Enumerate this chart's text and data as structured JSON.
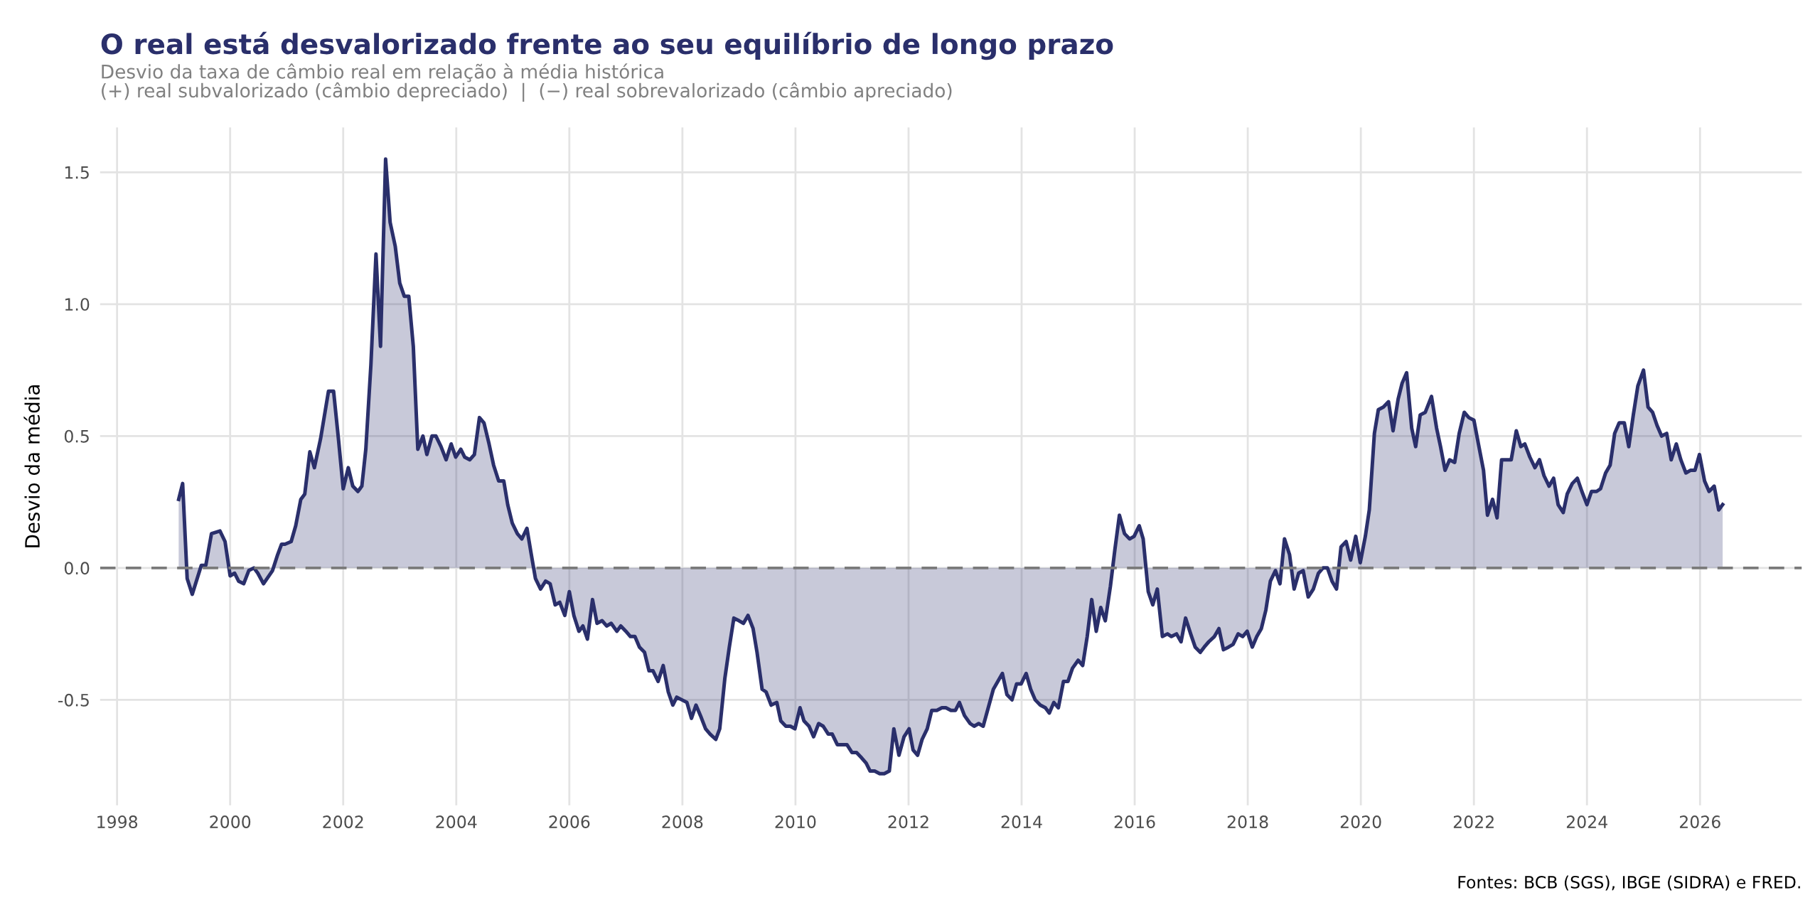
{
  "chart_data": {
    "type": "area",
    "title": "O real está desvalorizado frente ao seu equilíbrio de longo prazo",
    "subtitle": "Desvio da taxa de câmbio real em relação à média histórica\n(+) real subvalorizado (câmbio depreciado)  |  (−) real sobrevalorizado (câmbio apreciado)",
    "ylabel": "Desvio da média",
    "annotations": [
      "Fontes: BCB (SGS), IBGE (SIDRA) e FRED."
    ],
    "series": [
      {
        "color": "#2a2f6b",
        "x": [
          1999.09,
          1999.16,
          1999.24,
          1999.33,
          1999.49,
          1999.57,
          1999.67,
          1999.82,
          1999.91,
          2000.0,
          2000.08,
          2000.15,
          2000.24,
          2000.33,
          2000.42,
          2000.49,
          2000.59,
          2000.75,
          2000.84,
          2000.91,
          2000.97,
          2001.08,
          2001.16,
          2001.25,
          2001.32,
          2001.41,
          2001.49,
          2001.6,
          2001.74,
          2001.83,
          2001.92,
          2002.0,
          2002.09,
          2002.17,
          2002.26,
          2002.33,
          2002.4,
          2002.49,
          2002.58,
          2002.66,
          2002.75,
          2002.83,
          2002.92,
          2003.0,
          2003.08,
          2003.16,
          2003.24,
          2003.32,
          2003.41,
          2003.48,
          2003.57,
          2003.64,
          2003.73,
          2003.82,
          2003.91,
          2003.99,
          2004.08,
          2004.15,
          2004.24,
          2004.32,
          2004.41,
          2004.49,
          2004.58,
          2004.66,
          2004.75,
          2004.84,
          2004.91,
          2004.99,
          2005.08,
          2005.16,
          2005.25,
          2005.32,
          2005.4,
          2005.49,
          2005.58,
          2005.66,
          2005.75,
          2005.83,
          2005.92,
          2006.0,
          2006.08,
          2006.17,
          2006.24,
          2006.32,
          2006.41,
          2006.49,
          2006.58,
          2006.66,
          2006.74,
          2006.84,
          2006.91,
          2007.0,
          2007.08,
          2007.16,
          2007.24,
          2007.33,
          2007.41,
          2007.48,
          2007.57,
          2007.66,
          2007.75,
          2007.83,
          2007.9,
          2007.99,
          2008.08,
          2008.16,
          2008.24,
          2008.32,
          2008.41,
          2008.49,
          2008.59,
          2008.66,
          2008.75,
          2008.83,
          2008.91,
          2009.0,
          2009.08,
          2009.16,
          2009.25,
          2009.32,
          2009.41,
          2009.48,
          2009.57,
          2009.67,
          2009.74,
          2009.83,
          2009.91,
          2009.99,
          2010.08,
          2010.15,
          2010.24,
          2010.32,
          2010.41,
          2010.49,
          2010.58,
          2010.65,
          2010.74,
          2010.83,
          2010.91,
          2011.0,
          2011.08,
          2011.17,
          2011.25,
          2011.32,
          2011.4,
          2011.49,
          2011.57,
          2011.66,
          2011.74,
          2011.83,
          2011.92,
          2012.01,
          2012.08,
          2012.16,
          2012.24,
          2012.33,
          2012.41,
          2012.5,
          2012.59,
          2012.66,
          2012.75,
          2012.83,
          2012.9,
          2012.99,
          2013.09,
          2013.16,
          2013.24,
          2013.32,
          2013.41,
          2013.5,
          2013.66,
          2013.74,
          2013.83,
          2013.91,
          2013.99,
          2014.08,
          2014.16,
          2014.24,
          2014.33,
          2014.42,
          2014.49,
          2014.57,
          2014.65,
          2014.74,
          2014.82,
          2014.9,
          2015.0,
          2015.08,
          2015.16,
          2015.24,
          2015.32,
          2015.4,
          2015.48,
          2015.57,
          2015.65,
          2015.73,
          2015.82,
          2015.91,
          2015.99,
          2016.08,
          2016.15,
          2016.24,
          2016.32,
          2016.4,
          2016.49,
          2016.58,
          2016.65,
          2016.74,
          2016.82,
          2016.9,
          2016.99,
          2017.07,
          2017.16,
          2017.23,
          2017.31,
          2017.41,
          2017.49,
          2017.57,
          2017.66,
          2017.74,
          2017.83,
          2017.91,
          2017.99,
          2018.08,
          2018.16,
          2018.24,
          2018.32,
          2018.4,
          2018.49,
          2018.57,
          2018.65,
          2018.74,
          2018.82,
          2018.9,
          2018.98,
          2019.07,
          2019.16,
          2019.25,
          2019.33,
          2019.41,
          2019.49,
          2019.57,
          2019.65,
          2019.74,
          2019.82,
          2019.91,
          2019.99,
          2020.08,
          2020.15,
          2020.24,
          2020.31,
          2020.4,
          2020.49,
          2020.57,
          2020.66,
          2020.73,
          2020.81,
          2020.9,
          2020.97,
          2021.05,
          2021.14,
          2021.25,
          2021.34,
          2021.41,
          2021.49,
          2021.57,
          2021.66,
          2021.74,
          2021.83,
          2021.91,
          2022.0,
          2022.08,
          2022.17,
          2022.24,
          2022.33,
          2022.41,
          2022.49,
          2022.57,
          2022.66,
          2022.75,
          2022.83,
          2022.9,
          2022.99,
          2023.08,
          2023.16,
          2023.24,
          2023.33,
          2023.41,
          2023.49,
          2023.58,
          2023.65,
          2023.74,
          2023.83,
          2023.91,
          2024.0,
          2024.08,
          2024.17,
          2024.24,
          2024.33,
          2024.41,
          2024.49,
          2024.57,
          2024.66,
          2024.74,
          2024.82,
          2024.9,
          2025.0,
          2025.08,
          2025.16,
          2025.24,
          2025.32,
          2025.41,
          2025.49,
          2025.58,
          2025.66,
          2025.75,
          2025.83,
          2025.91,
          2025.99,
          2026.08,
          2026.16,
          2026.25,
          2026.33,
          2026.4
        ],
        "values": [
          0.26,
          0.32,
          -0.04,
          -0.1,
          0.01,
          0.01,
          0.13,
          0.14,
          0.1,
          -0.03,
          -0.02,
          -0.05,
          -0.06,
          -0.01,
          0.0,
          -0.02,
          -0.06,
          -0.01,
          0.05,
          0.09,
          0.09,
          0.1,
          0.16,
          0.26,
          0.28,
          0.44,
          0.38,
          0.49,
          0.67,
          0.67,
          0.48,
          0.3,
          0.38,
          0.31,
          0.29,
          0.31,
          0.45,
          0.77,
          1.19,
          0.84,
          1.55,
          1.31,
          1.22,
          1.08,
          1.03,
          1.03,
          0.84,
          0.45,
          0.5,
          0.43,
          0.5,
          0.5,
          0.46,
          0.41,
          0.47,
          0.42,
          0.45,
          0.42,
          0.41,
          0.43,
          0.57,
          0.55,
          0.47,
          0.39,
          0.33,
          0.33,
          0.24,
          0.17,
          0.13,
          0.11,
          0.15,
          0.06,
          -0.04,
          -0.08,
          -0.05,
          -0.06,
          -0.14,
          -0.13,
          -0.18,
          -0.09,
          -0.18,
          -0.24,
          -0.22,
          -0.27,
          -0.12,
          -0.21,
          -0.2,
          -0.22,
          -0.21,
          -0.24,
          -0.22,
          -0.24,
          -0.26,
          -0.26,
          -0.3,
          -0.32,
          -0.39,
          -0.39,
          -0.43,
          -0.37,
          -0.47,
          -0.52,
          -0.49,
          -0.5,
          -0.51,
          -0.57,
          -0.52,
          -0.56,
          -0.61,
          -0.63,
          -0.65,
          -0.61,
          -0.42,
          -0.3,
          -0.19,
          -0.2,
          -0.21,
          -0.18,
          -0.23,
          -0.32,
          -0.46,
          -0.47,
          -0.52,
          -0.51,
          -0.58,
          -0.6,
          -0.6,
          -0.61,
          -0.53,
          -0.58,
          -0.6,
          -0.64,
          -0.59,
          -0.6,
          -0.63,
          -0.63,
          -0.67,
          -0.67,
          -0.67,
          -0.7,
          -0.7,
          -0.72,
          -0.74,
          -0.77,
          -0.77,
          -0.78,
          -0.78,
          -0.77,
          -0.61,
          -0.71,
          -0.64,
          -0.61,
          -0.69,
          -0.71,
          -0.65,
          -0.61,
          -0.54,
          -0.54,
          -0.53,
          -0.53,
          -0.54,
          -0.54,
          -0.51,
          -0.56,
          -0.59,
          -0.6,
          -0.59,
          -0.6,
          -0.53,
          -0.46,
          -0.4,
          -0.48,
          -0.5,
          -0.44,
          -0.44,
          -0.4,
          -0.46,
          -0.5,
          -0.52,
          -0.53,
          -0.55,
          -0.51,
          -0.53,
          -0.43,
          -0.43,
          -0.38,
          -0.35,
          -0.37,
          -0.26,
          -0.12,
          -0.24,
          -0.15,
          -0.2,
          -0.07,
          0.07,
          0.2,
          0.13,
          0.11,
          0.12,
          0.16,
          0.11,
          -0.09,
          -0.14,
          -0.08,
          -0.26,
          -0.25,
          -0.26,
          -0.25,
          -0.28,
          -0.19,
          -0.25,
          -0.3,
          -0.32,
          -0.3,
          -0.28,
          -0.26,
          -0.23,
          -0.31,
          -0.3,
          -0.29,
          -0.25,
          -0.26,
          -0.24,
          -0.3,
          -0.26,
          -0.23,
          -0.16,
          -0.05,
          -0.01,
          -0.06,
          0.11,
          0.05,
          -0.08,
          -0.02,
          -0.01,
          -0.11,
          -0.08,
          -0.02,
          0.0,
          0.0,
          -0.05,
          -0.08,
          0.08,
          0.1,
          0.03,
          0.12,
          0.02,
          0.12,
          0.22,
          0.51,
          0.6,
          0.61,
          0.63,
          0.52,
          0.64,
          0.7,
          0.74,
          0.53,
          0.46,
          0.58,
          0.59,
          0.65,
          0.53,
          0.46,
          0.37,
          0.41,
          0.4,
          0.51,
          0.59,
          0.57,
          0.56,
          0.47,
          0.37,
          0.2,
          0.26,
          0.19,
          0.41,
          0.41,
          0.41,
          0.52,
          0.46,
          0.47,
          0.42,
          0.38,
          0.41,
          0.35,
          0.31,
          0.34,
          0.24,
          0.21,
          0.28,
          0.32,
          0.34,
          0.29,
          0.24,
          0.29,
          0.29,
          0.3,
          0.36,
          0.39,
          0.51,
          0.55,
          0.55,
          0.46,
          0.58,
          0.69,
          0.75,
          0.61,
          0.59,
          0.54,
          0.5,
          0.51,
          0.41,
          0.47,
          0.41,
          0.36,
          0.37,
          0.37,
          0.43,
          0.33,
          0.29,
          0.31,
          0.22,
          0.24
        ]
      }
    ],
    "xlim": [
      1997.7,
      2027.8
    ],
    "xticks": [
      1998,
      2000,
      2002,
      2004,
      2006,
      2008,
      2010,
      2012,
      2014,
      2016,
      2018,
      2020,
      2022,
      2024,
      2026
    ],
    "ylim": [
      -0.9,
      1.67
    ],
    "yticks": [
      {
        "value": -0.5,
        "label": "-0.5"
      },
      {
        "value": 0,
        "label": "0.0"
      },
      {
        "value": 0.5,
        "label": "0.5"
      },
      {
        "value": 1.0,
        "label": "1.0"
      },
      {
        "value": 1.5,
        "label": "1.5"
      }
    ],
    "ref_lines": [
      {
        "axis": "y",
        "value": 0,
        "label": null,
        "color": "#7a7a7a",
        "line_style": "dashed"
      }
    ],
    "grid": true
  }
}
